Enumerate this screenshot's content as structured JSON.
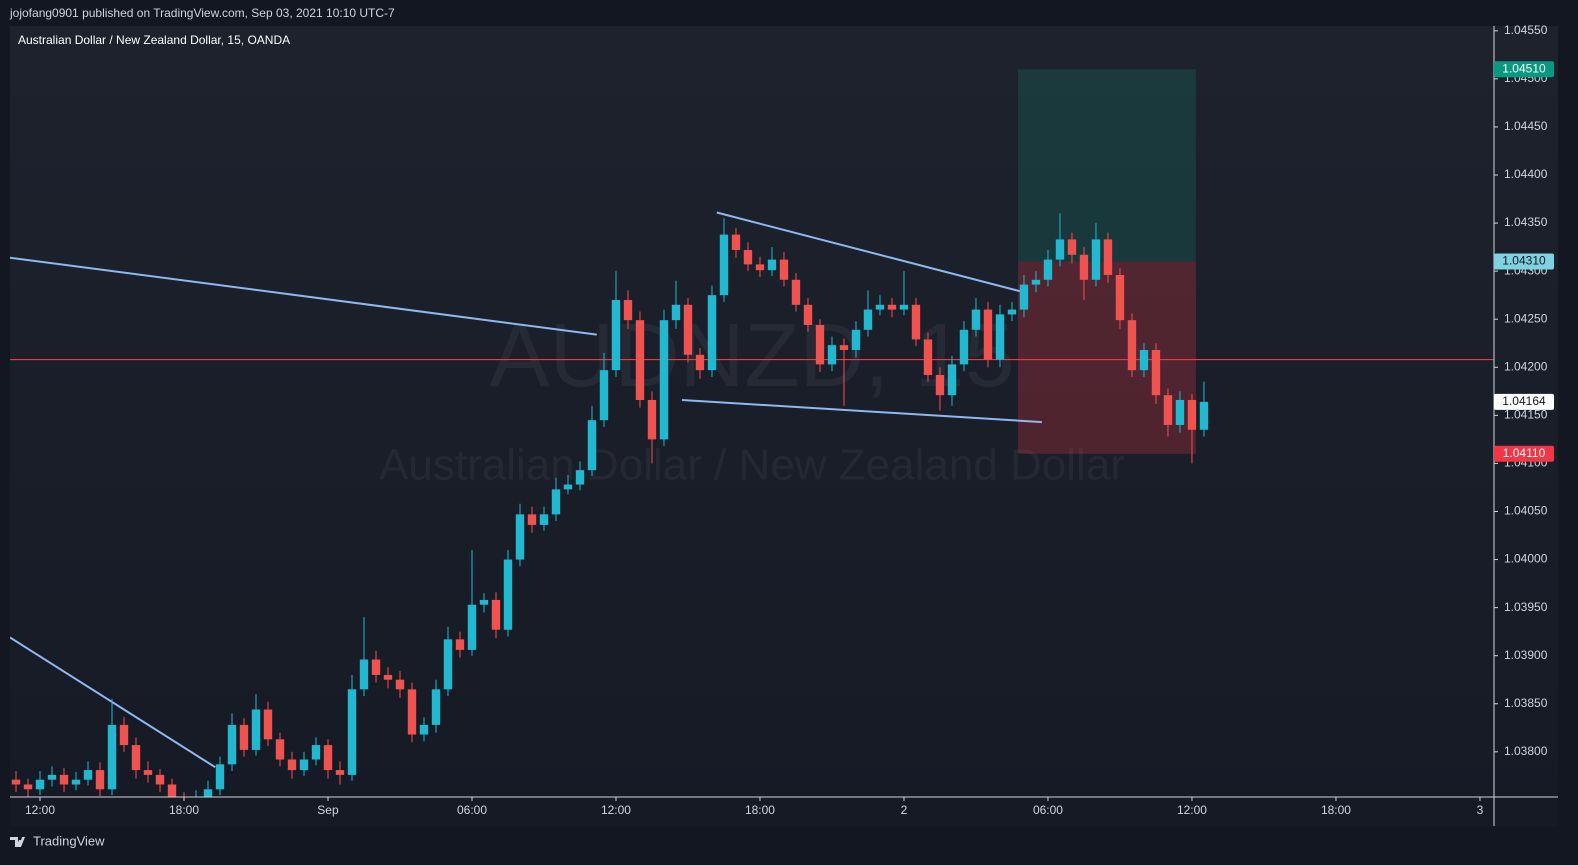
{
  "header": {
    "publisher": "jojofang0901 published on TradingView.com, Sep 03, 2021 10:10 UTC-7"
  },
  "chart_data": {
    "type": "candlestick",
    "title": "Australian Dollar / New Zealand Dollar, 15, OANDA",
    "watermark": {
      "symbol": "AUDNZD, 15",
      "name": "Australian Dollar / New Zealand Dollar"
    },
    "up_color": "#22b8d0",
    "down_color": "#ef5350",
    "candles": [
      [
        1.03771,
        1.0378,
        1.03758,
        1.03766
      ],
      [
        1.03766,
        1.03772,
        1.03752,
        1.03761
      ],
      [
        1.03761,
        1.0378,
        1.03755,
        1.03771
      ],
      [
        1.03771,
        1.03785,
        1.03764,
        1.03776
      ],
      [
        1.03776,
        1.03783,
        1.03758,
        1.03766
      ],
      [
        1.03766,
        1.03779,
        1.0376,
        1.03771
      ],
      [
        1.03771,
        1.0379,
        1.03765,
        1.03781
      ],
      [
        1.03781,
        1.03789,
        1.03754,
        1.03761
      ],
      [
        1.03761,
        1.03855,
        1.03755,
        1.03828
      ],
      [
        1.03828,
        1.03836,
        1.038,
        1.03807
      ],
      [
        1.03807,
        1.03815,
        1.03772,
        1.03781
      ],
      [
        1.03781,
        1.0379,
        1.03768,
        1.03776
      ],
      [
        1.03776,
        1.03782,
        1.03758,
        1.03766
      ],
      [
        1.03766,
        1.03772,
        1.03742,
        1.0375
      ],
      [
        1.0375,
        1.03758,
        1.03738,
        1.03745
      ],
      [
        1.03745,
        1.0376,
        1.0374,
        1.0375
      ],
      [
        1.0375,
        1.0377,
        1.03745,
        1.03761
      ],
      [
        1.03761,
        1.03795,
        1.03755,
        1.03787
      ],
      [
        1.03787,
        1.0384,
        1.0378,
        1.03828
      ],
      [
        1.03828,
        1.03835,
        1.03795,
        1.03802
      ],
      [
        1.03802,
        1.0386,
        1.03796,
        1.03844
      ],
      [
        1.03844,
        1.03852,
        1.03806,
        1.03813
      ],
      [
        1.03813,
        1.0382,
        1.03785,
        1.03792
      ],
      [
        1.03792,
        1.038,
        1.03772,
        1.03781
      ],
      [
        1.03781,
        1.038,
        1.03775,
        1.03792
      ],
      [
        1.03792,
        1.03815,
        1.03786,
        1.03807
      ],
      [
        1.03807,
        1.03813,
        1.03772,
        1.03781
      ],
      [
        1.03781,
        1.0379,
        1.03766,
        1.03776
      ],
      [
        1.03776,
        1.0388,
        1.0377,
        1.03865
      ],
      [
        1.03865,
        1.0394,
        1.03858,
        1.03896
      ],
      [
        1.03896,
        1.03905,
        1.03872,
        1.0388
      ],
      [
        1.0388,
        1.03888,
        1.03866,
        1.03875
      ],
      [
        1.03875,
        1.03884,
        1.03856,
        1.03865
      ],
      [
        1.03865,
        1.03872,
        1.0381,
        1.03818
      ],
      [
        1.03818,
        1.03836,
        1.03811,
        1.03828
      ],
      [
        1.03828,
        1.03875,
        1.0382,
        1.03865
      ],
      [
        1.03865,
        1.0393,
        1.03858,
        1.03917
      ],
      [
        1.03917,
        1.03925,
        1.03898,
        1.03906
      ],
      [
        1.03906,
        1.0401,
        1.039,
        1.03953
      ],
      [
        1.03953,
        1.03965,
        1.03945,
        1.03958
      ],
      [
        1.03958,
        1.03966,
        1.03918,
        1.03927
      ],
      [
        1.03927,
        1.0401,
        1.0392,
        1.04
      ],
      [
        1.04,
        1.04058,
        1.03993,
        1.04047
      ],
      [
        1.04047,
        1.04055,
        1.04028,
        1.04036
      ],
      [
        1.04036,
        1.04055,
        1.0403,
        1.04047
      ],
      [
        1.04047,
        1.04085,
        1.0404,
        1.04073
      ],
      [
        1.04073,
        1.04088,
        1.04068,
        1.04078
      ],
      [
        1.04078,
        1.04102,
        1.04072,
        1.04093
      ],
      [
        1.04093,
        1.0416,
        1.04087,
        1.04145
      ],
      [
        1.04145,
        1.04215,
        1.04138,
        1.04197
      ],
      [
        1.04197,
        1.043,
        1.0419,
        1.0427
      ],
      [
        1.0427,
        1.0428,
        1.0424,
        1.04249
      ],
      [
        1.04249,
        1.04258,
        1.04158,
        1.04166
      ],
      [
        1.04166,
        1.04175,
        1.041,
        1.04125
      ],
      [
        1.04125,
        1.0426,
        1.04118,
        1.04249
      ],
      [
        1.04249,
        1.0429,
        1.0424,
        1.04265
      ],
      [
        1.04265,
        1.04272,
        1.04205,
        1.04213
      ],
      [
        1.04213,
        1.0422,
        1.04188,
        1.04197
      ],
      [
        1.04197,
        1.04285,
        1.0419,
        1.04275
      ],
      [
        1.04275,
        1.04355,
        1.04268,
        1.04338
      ],
      [
        1.04338,
        1.04345,
        1.04314,
        1.04322
      ],
      [
        1.04322,
        1.0433,
        1.043,
        1.04307
      ],
      [
        1.04307,
        1.04315,
        1.04294,
        1.04301
      ],
      [
        1.04301,
        1.04325,
        1.04295,
        1.04312
      ],
      [
        1.04312,
        1.0432,
        1.04284,
        1.04291
      ],
      [
        1.04291,
        1.04298,
        1.04258,
        1.04265
      ],
      [
        1.04265,
        1.04272,
        1.04237,
        1.04244
      ],
      [
        1.04244,
        1.0425,
        1.04195,
        1.04203
      ],
      [
        1.04203,
        1.04232,
        1.04196,
        1.04223
      ],
      [
        1.04223,
        1.0423,
        1.0416,
        1.04218
      ],
      [
        1.04218,
        1.04248,
        1.0421,
        1.04239
      ],
      [
        1.04239,
        1.0428,
        1.04232,
        1.0426
      ],
      [
        1.0426,
        1.04275,
        1.04254,
        1.04265
      ],
      [
        1.04265,
        1.04272,
        1.04252,
        1.0426
      ],
      [
        1.0426,
        1.043,
        1.04254,
        1.04265
      ],
      [
        1.04265,
        1.04272,
        1.04222,
        1.04229
      ],
      [
        1.04229,
        1.04236,
        1.04185,
        1.04192
      ],
      [
        1.04192,
        1.042,
        1.04155,
        1.04171
      ],
      [
        1.04171,
        1.04212,
        1.0416,
        1.04203
      ],
      [
        1.04203,
        1.04248,
        1.04196,
        1.04239
      ],
      [
        1.04239,
        1.04272,
        1.04232,
        1.0426
      ],
      [
        1.0426,
        1.04268,
        1.042,
        1.04208
      ],
      [
        1.04208,
        1.04265,
        1.042,
        1.04255
      ],
      [
        1.04255,
        1.04268,
        1.04248,
        1.0426
      ],
      [
        1.0426,
        1.04296,
        1.04252,
        1.04286
      ],
      [
        1.04286,
        1.043,
        1.04278,
        1.04291
      ],
      [
        1.04291,
        1.04322,
        1.04284,
        1.04312
      ],
      [
        1.04312,
        1.0436,
        1.04305,
        1.04333
      ],
      [
        1.04333,
        1.0434,
        1.04308,
        1.04317
      ],
      [
        1.04317,
        1.04325,
        1.0427,
        1.04291
      ],
      [
        1.04291,
        1.0435,
        1.04284,
        1.04333
      ],
      [
        1.04333,
        1.0434,
        1.04288,
        1.04296
      ],
      [
        1.04296,
        1.04303,
        1.0424,
        1.04249
      ],
      [
        1.04249,
        1.04256,
        1.0419,
        1.04197
      ],
      [
        1.04197,
        1.04225,
        1.0419,
        1.04218
      ],
      [
        1.04218,
        1.04225,
        1.04162,
        1.04171
      ],
      [
        1.04171,
        1.04178,
        1.04128,
        1.0414
      ],
      [
        1.0414,
        1.04175,
        1.04132,
        1.04166
      ],
      [
        1.04166,
        1.04172,
        1.041,
        1.04135
      ],
      [
        1.04135,
        1.04185,
        1.04128,
        1.04164
      ]
    ],
    "xlim": [
      -0.5,
      123.17
    ],
    "xticks": [
      {
        "value": 2,
        "label": "12:00"
      },
      {
        "value": 14,
        "label": "18:00"
      },
      {
        "value": 26,
        "label": "Sep"
      },
      {
        "value": 38,
        "label": "06:00"
      },
      {
        "value": 50,
        "label": "12:00"
      },
      {
        "value": 62,
        "label": "18:00"
      },
      {
        "value": 74,
        "label": "2"
      },
      {
        "value": 86,
        "label": "06:00"
      },
      {
        "value": 98,
        "label": "12:00"
      },
      {
        "value": 110,
        "label": "18:00"
      },
      {
        "value": 122,
        "label": "3"
      }
    ],
    "ylim": [
      1.03753,
      1.04555
    ],
    "yticks": [
      {
        "value": 1.038,
        "label": "1.03800"
      },
      {
        "value": 1.0385,
        "label": "1.03850"
      },
      {
        "value": 1.039,
        "label": "1.03900"
      },
      {
        "value": 1.0395,
        "label": "1.03950"
      },
      {
        "value": 1.04,
        "label": "1.04000"
      },
      {
        "value": 1.0405,
        "label": "1.04050"
      },
      {
        "value": 1.041,
        "label": "1.04100"
      },
      {
        "value": 1.0415,
        "label": "1.04150"
      },
      {
        "value": 1.042,
        "label": "1.04200"
      },
      {
        "value": 1.0425,
        "label": "1.04250"
      },
      {
        "value": 1.043,
        "label": "1.04300"
      },
      {
        "value": 1.0435,
        "label": "1.04350"
      },
      {
        "value": 1.044,
        "label": "1.04400"
      },
      {
        "value": 1.0445,
        "label": "1.04450"
      },
      {
        "value": 1.045,
        "label": "1.04500"
      },
      {
        "value": 1.0455,
        "label": "1.04550"
      }
    ],
    "trend_line_color": "#8fb8f0",
    "trend_lines": [
      {
        "points": [
          [
            -0.5,
            1.04314
          ],
          [
            48.4,
            1.04234
          ]
        ]
      },
      {
        "points": [
          [
            -0.5,
            1.03919
          ],
          [
            16.6,
            1.03784
          ]
        ]
      },
      {
        "points": [
          [
            58.4,
            1.04361
          ],
          [
            83.7,
            1.04279
          ]
        ]
      },
      {
        "points": [
          [
            55.5,
            1.04166
          ],
          [
            85.5,
            1.04143
          ]
        ]
      }
    ],
    "horizontal_line": {
      "value": 1.04208,
      "color": "#f23645"
    },
    "position": {
      "x": [
        83.5,
        98.33
      ],
      "target": {
        "value": 1.0451,
        "label": "1.04510",
        "color": "#089981"
      },
      "entry": {
        "value": 1.0431,
        "label": "1.04310",
        "color": "#7fd3e0"
      },
      "stop": {
        "value": 1.0411,
        "label": "1.04110",
        "color": "#f23645"
      }
    },
    "last_price": {
      "value": 1.04164,
      "label": "1.04164"
    }
  },
  "footer": {
    "brand": "TradingView"
  }
}
